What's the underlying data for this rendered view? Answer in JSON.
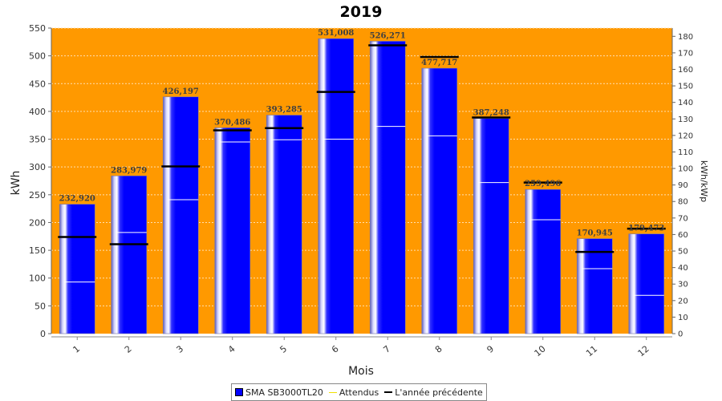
{
  "chart_data": {
    "type": "bar",
    "title": "2019",
    "xlabel": "Mois",
    "ylabel": "kWh",
    "y2label": "kWh/kWp",
    "categories": [
      "1",
      "2",
      "3",
      "4",
      "5",
      "6",
      "7",
      "8",
      "9",
      "10",
      "11",
      "12"
    ],
    "ylim": [
      0,
      550
    ],
    "yticks": [
      0,
      50,
      100,
      150,
      200,
      250,
      300,
      350,
      400,
      450,
      500,
      550
    ],
    "y2lim": [
      0,
      185
    ],
    "y2ticks": [
      0,
      10,
      20,
      30,
      40,
      50,
      60,
      70,
      80,
      90,
      100,
      110,
      120,
      130,
      140,
      150,
      160,
      170,
      180
    ],
    "grid": true,
    "legend_position": "bottom",
    "series": [
      {
        "name": "SMA SB3000TL20",
        "kind": "bar",
        "color": "#0000ff",
        "values": [
          232.92,
          283.979,
          426.197,
          370.486,
          393.285,
          531.008,
          526.271,
          477.717,
          387.248,
          259.496,
          170.945,
          179.473
        ],
        "labels": [
          "232,920",
          "283,979",
          "426,197",
          "370,486",
          "393,285",
          "531,008",
          "526,271",
          "477,717",
          "387,248",
          "259,496",
          "170,945",
          "179,473"
        ]
      },
      {
        "name": "Attendus",
        "kind": "marker",
        "color": "#ffff00",
        "values": [
          93,
          182,
          241,
          345,
          349,
          350,
          373,
          356,
          272,
          205,
          117,
          69
        ]
      },
      {
        "name": "L'année précédente",
        "kind": "marker",
        "color": "#000000",
        "values": [
          174,
          161,
          301,
          366,
          370,
          435,
          519,
          498,
          389,
          272,
          147,
          189
        ]
      }
    ],
    "colors": {
      "plot_background": "#ff9900",
      "grid": "#ffe0b0",
      "bar": "#0000ff",
      "expected_line": "#ffffff",
      "previous_year_line": "#000000"
    }
  }
}
